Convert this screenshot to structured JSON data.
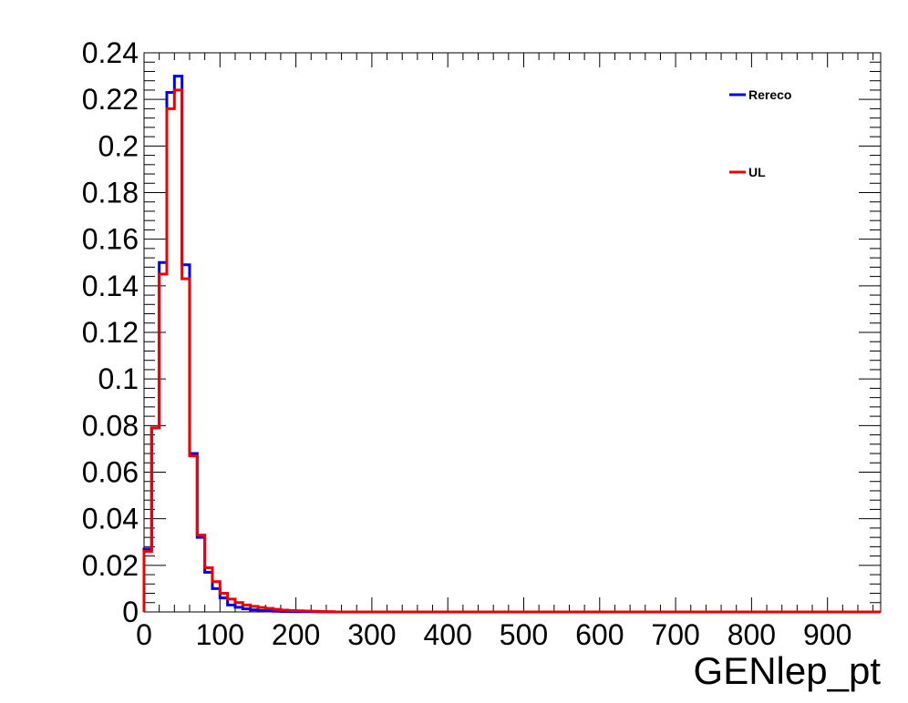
{
  "chart_data": {
    "type": "line",
    "title": "",
    "xlabel": "GENlep_pt",
    "ylabel": "",
    "xlim": [
      0,
      970
    ],
    "ylim": [
      0,
      0.24
    ],
    "grid": false,
    "legend_position": "top-right",
    "x_ticks": [
      "0",
      "100",
      "200",
      "300",
      "400",
      "500",
      "600",
      "700",
      "800",
      "900"
    ],
    "y_ticks": [
      "0",
      "0.02",
      "0.04",
      "0.06",
      "0.08",
      "0.1",
      "0.12",
      "0.14",
      "0.16",
      "0.18",
      "0.2",
      "0.22",
      "0.24"
    ],
    "bin_edges": [
      0,
      10,
      20,
      30,
      40,
      50,
      60,
      70,
      80,
      90,
      100,
      110,
      120,
      130,
      140,
      150,
      160,
      170,
      180,
      190,
      200,
      210,
      220,
      230,
      240,
      250,
      970
    ],
    "series": [
      {
        "name": "Rereco",
        "color": "#0000ee",
        "values": [
          0.027,
          0.079,
          0.15,
          0.223,
          0.23,
          0.149,
          0.068,
          0.032,
          0.017,
          0.01,
          0.006,
          0.003,
          0.002,
          0.0013,
          0.0009,
          0.0006,
          0.0004,
          0.0003,
          0.0002,
          0.00015,
          0.0001,
          0.0001,
          8e-05,
          6e-05,
          5e-05,
          0
        ]
      },
      {
        "name": "UL",
        "color": "#ee0000",
        "values": [
          0.026,
          0.079,
          0.145,
          0.216,
          0.224,
          0.143,
          0.067,
          0.033,
          0.019,
          0.013,
          0.008,
          0.0055,
          0.004,
          0.003,
          0.0024,
          0.0019,
          0.0015,
          0.0011,
          0.0008,
          0.0006,
          0.0005,
          0.0004,
          0.0003,
          0.0002,
          0.0001,
          0
        ]
      }
    ]
  }
}
